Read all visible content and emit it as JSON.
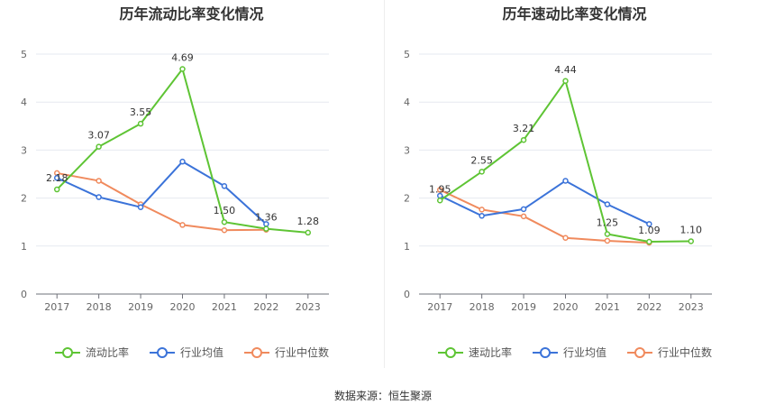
{
  "source": {
    "label": "数据来源：恒生聚源"
  },
  "colors": {
    "company": "#5ec434",
    "industry_avg": "#3b73d9",
    "industry_median": "#f08a5d"
  },
  "chart_data": [
    {
      "type": "line",
      "title": "历年流动比率变化情况",
      "x": [
        "2017",
        "2018",
        "2019",
        "2020",
        "2021",
        "2022",
        "2023"
      ],
      "ylim": [
        0,
        5
      ],
      "yticks": [
        "0",
        "1",
        "2",
        "3",
        "4",
        "5"
      ],
      "grid": true,
      "legend_position": "bottom",
      "series": [
        {
          "name": "流动比率",
          "color": "#5ec434",
          "values": [
            2.18,
            3.07,
            3.55,
            4.69,
            1.5,
            1.36,
            1.28
          ],
          "labels": [
            "2.18",
            "3.07",
            "3.55",
            "4.69",
            "1.50",
            "1.36",
            "1.28"
          ]
        },
        {
          "name": "行业均值",
          "color": "#3b73d9",
          "values": [
            2.42,
            2.02,
            1.81,
            2.76,
            2.25,
            1.46,
            null
          ]
        },
        {
          "name": "行业中位数",
          "color": "#f08a5d",
          "values": [
            2.52,
            2.36,
            1.87,
            1.44,
            1.33,
            1.34,
            null
          ]
        }
      ]
    },
    {
      "type": "line",
      "title": "历年速动比率变化情况",
      "x": [
        "2017",
        "2018",
        "2019",
        "2020",
        "2021",
        "2022",
        "2023"
      ],
      "ylim": [
        0,
        5
      ],
      "yticks": [
        "0",
        "1",
        "2",
        "3",
        "4",
        "5"
      ],
      "grid": true,
      "legend_position": "bottom",
      "series": [
        {
          "name": "速动比率",
          "color": "#5ec434",
          "values": [
            1.95,
            2.55,
            3.21,
            4.44,
            1.25,
            1.09,
            1.1
          ],
          "labels": [
            "1.95",
            "2.55",
            "3.21",
            "4.44",
            "1.25",
            "1.09",
            "1.10"
          ]
        },
        {
          "name": "行业均值",
          "color": "#3b73d9",
          "values": [
            2.05,
            1.63,
            1.77,
            2.36,
            1.87,
            1.46,
            null
          ]
        },
        {
          "name": "行业中位数",
          "color": "#f08a5d",
          "values": [
            2.17,
            1.76,
            1.62,
            1.17,
            1.11,
            1.07,
            null
          ]
        }
      ]
    }
  ]
}
